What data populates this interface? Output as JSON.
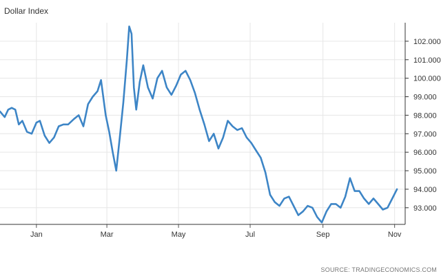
{
  "title": "Dollar Index",
  "source": "SOURCE: TRADINGECONOMICS.COM",
  "chart_data": {
    "type": "line",
    "title": "Dollar Index",
    "xlabel": "",
    "ylabel": "",
    "grid": true,
    "y_axis_side": "right",
    "ylim": [
      92.1,
      103.0
    ],
    "yticks": [
      93.0,
      94.0,
      95.0,
      96.0,
      97.0,
      98.0,
      99.0,
      100.0,
      101.0,
      102.0
    ],
    "ytick_labels": [
      "93.000",
      "94.000",
      "95.000",
      "96.000",
      "97.000",
      "98.000",
      "99.000",
      "100.000",
      "101.000",
      "102.000"
    ],
    "xlim": [
      "2019-12-01",
      "2020-11-10"
    ],
    "xticks": [
      "2020-01-01",
      "2020-03-01",
      "2020-05-01",
      "2020-07-01",
      "2020-09-01",
      "2020-11-01"
    ],
    "xtick_labels": [
      "Jan",
      "Mar",
      "May",
      "Jul",
      "Sep",
      "Nov"
    ],
    "series": [
      {
        "color": "#3d85c6",
        "x": [
          "2019-12-01",
          "2019-12-05",
          "2019-12-08",
          "2019-12-11",
          "2019-12-14",
          "2019-12-17",
          "2019-12-20",
          "2019-12-24",
          "2019-12-28",
          "2020-01-01",
          "2020-01-04",
          "2020-01-08",
          "2020-01-12",
          "2020-01-16",
          "2020-01-20",
          "2020-01-24",
          "2020-01-28",
          "2020-02-02",
          "2020-02-06",
          "2020-02-10",
          "2020-02-14",
          "2020-02-18",
          "2020-02-22",
          "2020-02-25",
          "2020-02-29",
          "2020-03-03",
          "2020-03-06",
          "2020-03-09",
          "2020-03-12",
          "2020-03-15",
          "2020-03-18",
          "2020-03-20",
          "2020-03-22",
          "2020-03-24",
          "2020-03-26",
          "2020-03-29",
          "2020-04-01",
          "2020-04-05",
          "2020-04-09",
          "2020-04-13",
          "2020-04-17",
          "2020-04-21",
          "2020-04-25",
          "2020-04-29",
          "2020-05-03",
          "2020-05-07",
          "2020-05-11",
          "2020-05-15",
          "2020-05-19",
          "2020-05-23",
          "2020-05-27",
          "2020-05-31",
          "2020-06-04",
          "2020-06-08",
          "2020-06-12",
          "2020-06-16",
          "2020-06-20",
          "2020-06-24",
          "2020-06-28",
          "2020-07-02",
          "2020-07-06",
          "2020-07-10",
          "2020-07-14",
          "2020-07-18",
          "2020-07-22",
          "2020-07-26",
          "2020-07-30",
          "2020-08-03",
          "2020-08-07",
          "2020-08-11",
          "2020-08-15",
          "2020-08-19",
          "2020-08-23",
          "2020-08-27",
          "2020-08-31",
          "2020-09-04",
          "2020-09-08",
          "2020-09-12",
          "2020-09-16",
          "2020-09-20",
          "2020-09-24",
          "2020-09-28",
          "2020-10-02",
          "2020-10-06",
          "2020-10-10",
          "2020-10-14",
          "2020-10-18",
          "2020-10-22",
          "2020-10-26",
          "2020-10-30",
          "2020-11-03"
        ],
        "values": [
          98.2,
          97.9,
          98.3,
          98.4,
          98.3,
          97.5,
          97.7,
          97.1,
          97.0,
          97.6,
          97.7,
          96.9,
          96.5,
          96.8,
          97.4,
          97.5,
          97.5,
          97.8,
          98.0,
          97.4,
          98.6,
          99.0,
          99.3,
          99.9,
          98.0,
          97.1,
          96.0,
          95.0,
          96.8,
          98.7,
          101.0,
          102.8,
          102.4,
          99.5,
          98.3,
          99.8,
          100.7,
          99.5,
          98.9,
          100.0,
          100.4,
          99.5,
          99.1,
          99.6,
          100.2,
          100.4,
          99.9,
          99.2,
          98.3,
          97.5,
          96.6,
          97.0,
          96.2,
          96.8,
          97.7,
          97.4,
          97.2,
          97.3,
          96.8,
          96.5,
          96.1,
          95.7,
          94.9,
          93.7,
          93.3,
          93.1,
          93.5,
          93.6,
          93.1,
          92.6,
          92.8,
          93.1,
          93.0,
          92.5,
          92.2,
          92.8,
          93.2,
          93.2,
          93.0,
          93.6,
          94.6,
          93.9,
          93.9,
          93.5,
          93.2,
          93.5,
          93.2,
          92.9,
          93.0,
          93.5,
          94.0
        ]
      }
    ]
  }
}
